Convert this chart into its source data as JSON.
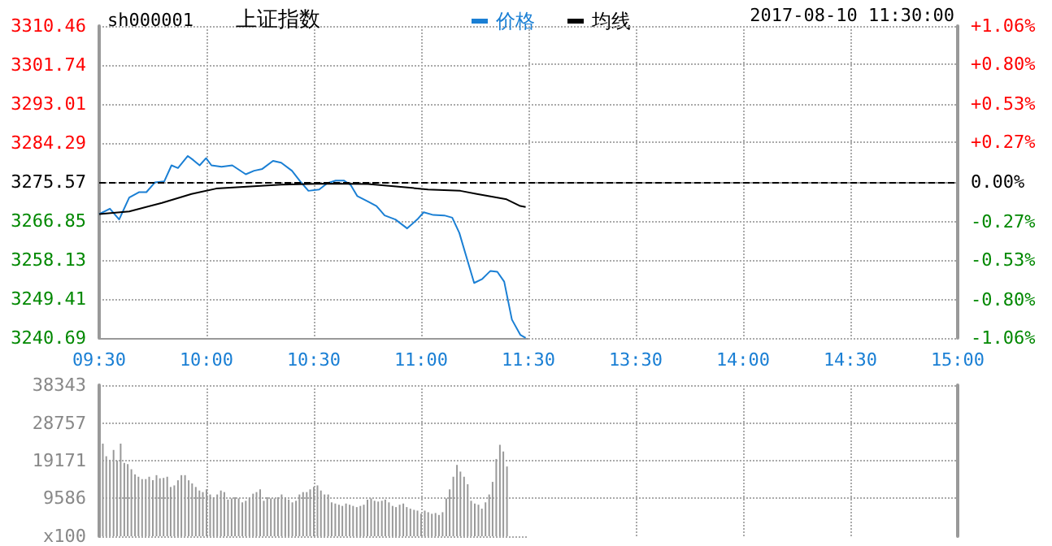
{
  "chart_data": [
    {
      "type": "line",
      "title": "上证指数",
      "subtitle": "sh000001",
      "annotations": [
        "2017-08-10 11:30:00"
      ],
      "legend": "top",
      "grid": true,
      "marker": "none",
      "line_style": "solid",
      "xlim": [
        9.5,
        11.5
      ],
      "xticks": [
        {
          "value": 9.5,
          "label": "09:30"
        },
        {
          "value": 10,
          "label": "10:00"
        },
        {
          "value": 10.5,
          "label": "10:30"
        },
        {
          "value": 11,
          "label": "11:00"
        },
        {
          "value": 11.5,
          "label": "11:30"
        }
      ],
      "ylim": [
        3240.69,
        3310.46
      ],
      "yticks": [
        3240.69,
        3249.41,
        3258.13,
        3266.85,
        3275.57,
        3284.29,
        3293.01,
        3301.74,
        3310.46
      ],
      "ref_lines": [
        {
          "axis": "y",
          "value": 3275.57,
          "color": "#000000",
          "line_style": "dashed"
        }
      ],
      "series": [
        {
          "name": "价格",
          "color": "#1a7fd4",
          "x": [
            9.5,
            9.55,
            9.593,
            9.64,
            9.685,
            9.72,
            9.76,
            9.803,
            9.837,
            9.867,
            9.913,
            9.938,
            9.968,
            9.998,
            10.023,
            10.07,
            10.12,
            10.183,
            10.222,
            10.26,
            10.31,
            10.348,
            10.398,
            10.437,
            10.475,
            10.525,
            10.563,
            10.602,
            10.64,
            10.672,
            10.703,
            10.753,
            10.792,
            10.83,
            10.88,
            10.935,
            10.982,
            11.012,
            11.057,
            11.108,
            11.145,
            11.178,
            11.208,
            11.247,
            11.285,
            11.323,
            11.355,
            11.387,
            11.423,
            11.462,
            11.487
          ],
          "values": [
            3268.4,
            3269.6,
            3267.2,
            3272.1,
            3273.3,
            3273.3,
            3275.5,
            3275.7,
            3279.3,
            3278.7,
            3281.4,
            3280.5,
            3279.3,
            3280.9,
            3279.3,
            3279,
            3279.3,
            3277.3,
            3278.1,
            3278.5,
            3280.3,
            3279.9,
            3278.1,
            3275.7,
            3273.6,
            3273.9,
            3275.3,
            3275.9,
            3275.9,
            3274.9,
            3272.4,
            3271.2,
            3270.2,
            3268.1,
            3267.2,
            3265.2,
            3267.2,
            3268.8,
            3268.2,
            3268.1,
            3267.6,
            3264.2,
            3259.3,
            3253,
            3253.9,
            3255.7,
            3255.5,
            3253.3,
            3244.8,
            3241.4,
            3240.7
          ]
        },
        {
          "name": "均线",
          "color": "#000000",
          "x": [
            9.5,
            9.64,
            9.792,
            9.93,
            10.045,
            10.172,
            10.348,
            10.55,
            10.753,
            10.905,
            11.032,
            11.183,
            11.26,
            11.398,
            11.462,
            11.487
          ],
          "values": [
            3268.4,
            3269,
            3270.9,
            3272.9,
            3274.1,
            3274.5,
            3275,
            3275.2,
            3275.1,
            3274.5,
            3273.9,
            3273.6,
            3272.9,
            3271.7,
            3270.2,
            3270
          ]
        }
      ]
    },
    {
      "type": "line",
      "grid": true,
      "xlim": [
        13,
        15
      ],
      "xticks": [
        {
          "value": 13.5,
          "label": "13:30"
        },
        {
          "value": 14,
          "label": "14:00"
        },
        {
          "value": 14.5,
          "label": "14:30"
        },
        {
          "value": 15,
          "label": "15:00"
        }
      ],
      "ylim": [
        -1.06,
        1.06
      ],
      "yticks": [
        {
          "value": -1.06,
          "label": "-1.06%"
        },
        {
          "value": -0.8,
          "label": "-0.80%"
        },
        {
          "value": -0.53,
          "label": "-0.53%"
        },
        {
          "value": -0.27,
          "label": "-0.27%"
        },
        {
          "value": 0,
          "label": "0.00%"
        },
        {
          "value": 0.27,
          "label": "+0.27%"
        },
        {
          "value": 0.53,
          "label": "+0.53%"
        },
        {
          "value": 0.8,
          "label": "+0.80%"
        },
        {
          "value": 1.06,
          "label": "+1.06%"
        }
      ],
      "ref_lines": [
        {
          "axis": "y",
          "value": 0,
          "color": "#000000",
          "line_style": "dashed"
        }
      ]
    },
    {
      "type": "bar",
      "grid": true,
      "tick_labels": "y",
      "color": "#999999",
      "xlim": [
        9.5,
        11.5
      ],
      "xticks": [
        9.5,
        10,
        10.5,
        11,
        11.5
      ],
      "ylim": [
        0,
        38343
      ],
      "yticks": [
        {
          "value": 0,
          "label": "x100"
        },
        9586,
        19171,
        28757,
        38343
      ],
      "x": [
        9.517,
        9.533,
        9.55,
        9.567,
        9.583,
        9.6,
        9.617,
        9.633,
        9.65,
        9.667,
        9.683,
        9.7,
        9.717,
        9.733,
        9.75,
        9.767,
        9.783,
        9.8,
        9.817,
        9.833,
        9.85,
        9.867,
        9.883,
        9.9,
        9.917,
        9.933,
        9.95,
        9.967,
        9.983,
        10,
        10.017,
        10.033,
        10.05,
        10.067,
        10.083,
        10.1,
        10.117,
        10.133,
        10.15,
        10.167,
        10.183,
        10.2,
        10.217,
        10.233,
        10.25,
        10.267,
        10.283,
        10.3,
        10.317,
        10.333,
        10.35,
        10.367,
        10.383,
        10.4,
        10.417,
        10.433,
        10.45,
        10.467,
        10.483,
        10.5,
        10.517,
        10.533,
        10.55,
        10.567,
        10.583,
        10.6,
        10.617,
        10.633,
        10.65,
        10.667,
        10.683,
        10.7,
        10.717,
        10.733,
        10.75,
        10.767,
        10.783,
        10.8,
        10.817,
        10.833,
        10.85,
        10.867,
        10.883,
        10.9,
        10.917,
        10.933,
        10.95,
        10.967,
        10.983,
        11,
        11.017,
        11.033,
        11.05,
        11.067,
        11.083,
        11.1,
        11.117,
        11.133,
        11.15,
        11.167,
        11.183,
        11.2,
        11.217,
        11.233,
        11.25,
        11.267,
        11.283,
        11.3,
        11.317,
        11.333,
        11.35,
        11.367,
        11.383,
        11.4
      ],
      "values": [
        23500,
        20300,
        19400,
        21900,
        19200,
        23500,
        18600,
        18300,
        17000,
        15700,
        15100,
        14500,
        14500,
        15100,
        14200,
        15500,
        14700,
        14800,
        15100,
        12500,
        12900,
        14200,
        15500,
        15500,
        14200,
        13400,
        12500,
        11600,
        11200,
        11900,
        10600,
        9900,
        10600,
        11600,
        11200,
        9300,
        9600,
        9900,
        9600,
        8600,
        9000,
        9800,
        10800,
        11200,
        11900,
        9000,
        9900,
        9600,
        9600,
        9900,
        10600,
        9900,
        9300,
        8600,
        9000,
        10600,
        11200,
        11200,
        11900,
        12500,
        12900,
        11600,
        10600,
        10600,
        8600,
        8300,
        8000,
        7700,
        8300,
        8000,
        7700,
        7400,
        7700,
        8000,
        9300,
        9600,
        9000,
        8800,
        9000,
        9300,
        8600,
        7700,
        7400,
        8000,
        8300,
        7400,
        7000,
        6700,
        6500,
        5700,
        6500,
        6100,
        5700,
        5900,
        5400,
        6100,
        9600,
        11900,
        15100,
        18100,
        16400,
        15100,
        13200,
        9000,
        8300,
        8000,
        7000,
        8600,
        10600,
        13800,
        19600,
        23200,
        21500,
        17700
      ]
    },
    {
      "type": "bar",
      "grid": true,
      "tick_labels": false,
      "color": "#999999",
      "xlim": [
        13,
        15
      ],
      "xticks": [
        13.5,
        14,
        14.5,
        15
      ],
      "ylim": [
        0,
        38343
      ],
      "yticks": [
        9586,
        19171,
        28757,
        38343
      ]
    }
  ]
}
